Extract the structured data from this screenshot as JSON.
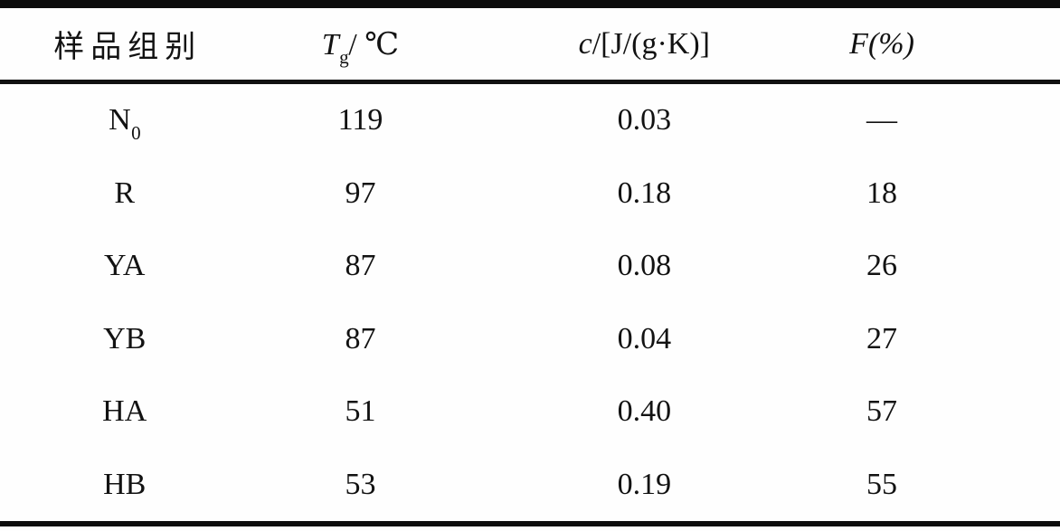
{
  "table": {
    "header": {
      "sample_group": "样品组别",
      "tg": {
        "symbol": "T",
        "sub": "g",
        "unit": "/ ℃"
      },
      "c": {
        "symbol": "c",
        "unit": "/[J/(g·K)]"
      },
      "f": {
        "symbol": "F",
        "unit": "(%)"
      }
    },
    "rows": [
      {
        "sample_base": "N",
        "sample_sub": "0",
        "tg": "119",
        "c": "0.03",
        "f": "—"
      },
      {
        "sample_base": "R",
        "sample_sub": "",
        "tg": "97",
        "c": "0.18",
        "f": "18"
      },
      {
        "sample_base": "YA",
        "sample_sub": "",
        "tg": "87",
        "c": "0.08",
        "f": "26"
      },
      {
        "sample_base": "YB",
        "sample_sub": "",
        "tg": "87",
        "c": "0.04",
        "f": "27"
      },
      {
        "sample_base": "HA",
        "sample_sub": "",
        "tg": "51",
        "c": "0.40",
        "f": "57"
      },
      {
        "sample_base": "HB",
        "sample_sub": "",
        "tg": "53",
        "c": "0.19",
        "f": "55"
      }
    ],
    "colors": {
      "rule": "#0d0d0d",
      "text": "#121212",
      "background": "#fefefe"
    }
  },
  "chart_data": {
    "type": "table",
    "columns": [
      "样品组别",
      "Tg/℃",
      "c/[J/(g·K)]",
      "F(%)"
    ],
    "rows": [
      [
        "N0",
        "119",
        "0.03",
        "—"
      ],
      [
        "R",
        "97",
        "0.18",
        "18"
      ],
      [
        "YA",
        "87",
        "0.08",
        "26"
      ],
      [
        "YB",
        "87",
        "0.04",
        "27"
      ],
      [
        "HA",
        "51",
        "0.40",
        "57"
      ],
      [
        "HB",
        "53",
        "0.19",
        "55"
      ]
    ]
  }
}
